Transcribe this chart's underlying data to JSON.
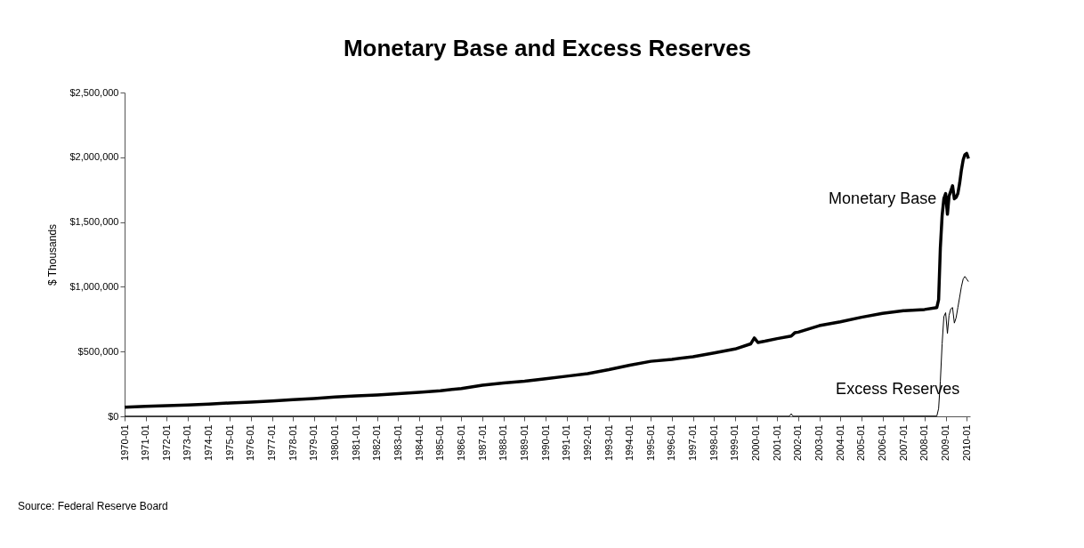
{
  "chart_data": {
    "type": "line",
    "title": "Monetary Base and Excess Reserves",
    "ylabel": "$ Thousands",
    "annotations": [
      "Source: Federal Reserve Board"
    ],
    "xlim": [
      "1970-01",
      "2010-03"
    ],
    "xticks": [
      "1970-01",
      "1971-01",
      "1972-01",
      "1973-01",
      "1974-01",
      "1975-01",
      "1976-01",
      "1977-01",
      "1978-01",
      "1979-01",
      "1980-01",
      "1981-01",
      "1982-01",
      "1983-01",
      "1984-01",
      "1985-01",
      "1986-01",
      "1987-01",
      "1988-01",
      "1989-01",
      "1990-01",
      "1991-01",
      "1992-01",
      "1993-01",
      "1994-01",
      "1995-01",
      "1996-01",
      "1997-01",
      "1998-01",
      "1999-01",
      "2000-01",
      "2001-01",
      "2002-01",
      "2003-01",
      "2004-01",
      "2005-01",
      "2006-01",
      "2007-01",
      "2008-01",
      "2009-01",
      "2010-01"
    ],
    "ylim": [
      0,
      2500000
    ],
    "yticks": [
      {
        "value": 0,
        "label": "$0"
      },
      {
        "value": 500000,
        "label": "$500,000"
      },
      {
        "value": 1000000,
        "label": "$1,000,000"
      },
      {
        "value": 1500000,
        "label": "$1,500,000"
      },
      {
        "value": 2000000,
        "label": "$2,000,000"
      },
      {
        "value": 2500000,
        "label": "$2,500,000"
      }
    ],
    "grid": false,
    "marker": "none",
    "line_style": "solid",
    "series": [
      {
        "name": "Monetary Base",
        "color": "#000000",
        "x": [
          "1970-01",
          "1971-01",
          "1972-01",
          "1973-01",
          "1974-01",
          "1975-01",
          "1976-01",
          "1977-01",
          "1978-01",
          "1979-01",
          "1980-01",
          "1981-01",
          "1982-01",
          "1983-01",
          "1984-01",
          "1985-01",
          "1986-01",
          "1987-01",
          "1988-01",
          "1989-01",
          "1990-01",
          "1991-01",
          "1992-01",
          "1993-01",
          "1994-01",
          "1995-01",
          "1996-01",
          "1997-01",
          "1998-01",
          "1999-01",
          "1999-10",
          "1999-12",
          "2000-02",
          "2000-06",
          "2001-01",
          "2001-09",
          "2001-11",
          "2002-01",
          "2003-01",
          "2004-01",
          "2005-01",
          "2006-01",
          "2007-01",
          "2008-01",
          "2008-08",
          "2008-09",
          "2008-10",
          "2008-11",
          "2008-12",
          "2009-01",
          "2009-02",
          "2009-03",
          "2009-04",
          "2009-05",
          "2009-06",
          "2009-07",
          "2009-08",
          "2009-09",
          "2009-10",
          "2009-11",
          "2009-12",
          "2010-01",
          "2010-02"
        ],
        "values": [
          70000,
          77000,
          83000,
          88000,
          95000,
          103000,
          110000,
          118000,
          128000,
          138000,
          150000,
          158000,
          165000,
          175000,
          185000,
          198000,
          215000,
          240000,
          258000,
          272000,
          290000,
          310000,
          330000,
          360000,
          395000,
          425000,
          440000,
          460000,
          490000,
          520000,
          560000,
          605000,
          570000,
          580000,
          600000,
          620000,
          645000,
          650000,
          700000,
          730000,
          765000,
          795000,
          815000,
          825000,
          840000,
          900000,
          1300000,
          1550000,
          1680000,
          1720000,
          1560000,
          1700000,
          1740000,
          1780000,
          1680000,
          1690000,
          1720000,
          1800000,
          1900000,
          1980000,
          2020000,
          2030000,
          1990000
        ]
      },
      {
        "name": "Excess Reserves",
        "color": "#000000",
        "x": [
          "1970-01",
          "1980-01",
          "1990-01",
          "2001-08",
          "2001-09",
          "2001-10",
          "2008-08",
          "2008-09",
          "2008-10",
          "2008-11",
          "2008-12",
          "2009-01",
          "2009-02",
          "2009-03",
          "2009-04",
          "2009-05",
          "2009-06",
          "2009-07",
          "2009-08",
          "2009-09",
          "2009-10",
          "2009-11",
          "2009-12",
          "2010-01",
          "2010-02"
        ],
        "values": [
          1000,
          1000,
          1000,
          1000,
          20000,
          1000,
          2000,
          60000,
          270000,
          560000,
          770000,
          800000,
          640000,
          780000,
          830000,
          840000,
          720000,
          760000,
          840000,
          920000,
          1000000,
          1060000,
          1080000,
          1060000,
          1040000
        ]
      }
    ]
  }
}
